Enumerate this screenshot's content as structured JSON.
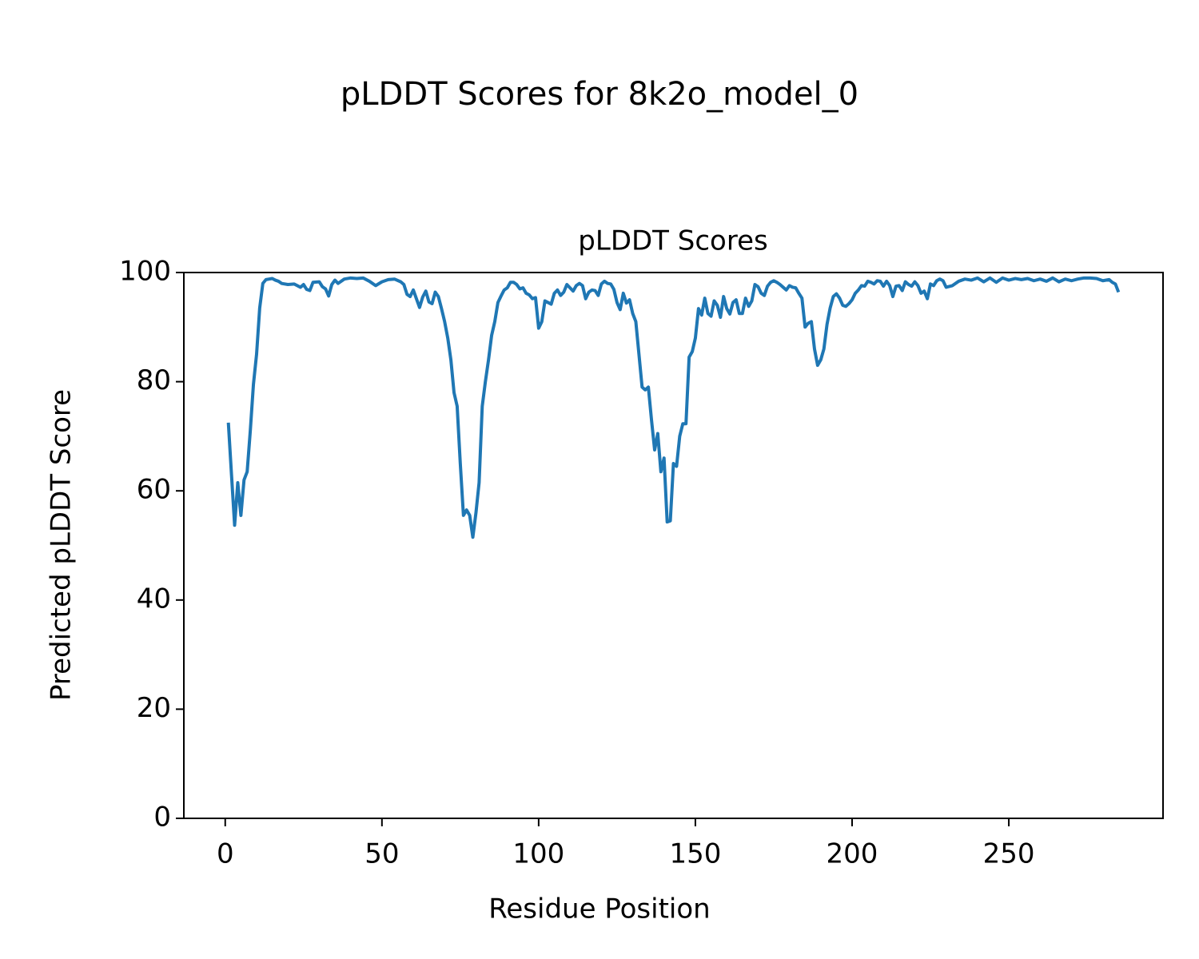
{
  "chart_data": {
    "type": "line",
    "title": "pLDDT Scores for 8k2o_model_0",
    "subtitle": "pLDDT Scores",
    "x_label": "Residue Position",
    "y_label": "Predicted pLDDT Score",
    "xlim": [
      -13.2,
      299.2
    ],
    "xticks": [
      0,
      50,
      100,
      150,
      200,
      250
    ],
    "ylim": [
      0,
      100
    ],
    "yticks": [
      0,
      20,
      40,
      60,
      80,
      100
    ],
    "x": [
      1,
      2,
      3,
      4,
      5,
      6,
      7,
      8,
      9,
      10,
      11,
      12,
      13,
      14,
      15,
      16,
      17,
      18,
      20,
      22,
      24,
      25,
      26,
      27,
      28,
      30,
      31,
      32,
      33,
      34,
      35,
      36,
      38,
      40,
      42,
      44,
      46,
      48,
      50,
      52,
      54,
      56,
      57,
      58,
      59,
      60,
      61,
      62,
      63,
      64,
      65,
      66,
      67,
      68,
      69,
      70,
      71,
      72,
      73,
      74,
      75,
      76,
      77,
      78,
      79,
      80,
      81,
      82,
      83,
      84,
      85,
      86,
      87,
      88,
      89,
      90,
      91,
      92,
      93,
      94,
      95,
      96,
      97,
      98,
      99,
      100,
      101,
      102,
      103,
      104,
      105,
      106,
      107,
      108,
      109,
      110,
      111,
      112,
      113,
      114,
      115,
      116,
      117,
      118,
      119,
      120,
      121,
      122,
      123,
      124,
      125,
      126,
      127,
      128,
      129,
      130,
      131,
      132,
      133,
      134,
      135,
      136,
      137,
      138,
      139,
      140,
      141,
      142,
      143,
      144,
      145,
      146,
      147,
      148,
      149,
      150,
      151,
      152,
      153,
      154,
      155,
      156,
      157,
      158,
      159,
      160,
      161,
      162,
      163,
      164,
      165,
      166,
      167,
      168,
      169,
      170,
      171,
      172,
      173,
      174,
      175,
      176,
      177,
      178,
      179,
      180,
      181,
      182,
      183,
      184,
      185,
      186,
      187,
      188,
      189,
      190,
      191,
      192,
      193,
      194,
      195,
      196,
      197,
      198,
      199,
      200,
      201,
      202,
      203,
      204,
      205,
      206,
      207,
      208,
      209,
      210,
      211,
      212,
      213,
      214,
      215,
      216,
      217,
      218,
      219,
      220,
      221,
      222,
      223,
      224,
      225,
      226,
      227,
      228,
      229,
      230,
      232,
      234,
      236,
      238,
      240,
      242,
      244,
      246,
      248,
      250,
      252,
      254,
      256,
      258,
      260,
      262,
      264,
      266,
      268,
      270,
      272,
      274,
      276,
      278,
      280,
      282,
      283,
      284,
      285
    ],
    "series": [
      {
        "color": "#1f77b4",
        "values": [
          72.5,
          63,
          53.7,
          61.5,
          55.5,
          62,
          63.5,
          71,
          79.5,
          85,
          93.5,
          98,
          98.7,
          98.8,
          98.9,
          98.6,
          98.4,
          98.0,
          97.8,
          97.9,
          97.3,
          97.8,
          96.9,
          96.7,
          98.2,
          98.3,
          97.4,
          97.0,
          95.7,
          97.8,
          98.6,
          98.0,
          98.8,
          99.0,
          98.9,
          99.0,
          98.4,
          97.6,
          98.3,
          98.7,
          98.8,
          98.3,
          97.8,
          96.0,
          95.6,
          96.8,
          95.2,
          93.6,
          95.5,
          96.6,
          94.6,
          94.3,
          96.4,
          95.6,
          93.4,
          91,
          88,
          84,
          78,
          75.5,
          65,
          55.5,
          56.5,
          55.5,
          51.5,
          56,
          61.5,
          75.5,
          80,
          84,
          88.5,
          91,
          94.5,
          95.7,
          96.8,
          97.2,
          98.2,
          98.2,
          97.8,
          97.0,
          97.2,
          96.2,
          95.9,
          95.2,
          95.4,
          89.8,
          91,
          94.8,
          94.5,
          94.2,
          96.2,
          96.8,
          95.8,
          96.4,
          97.8,
          97.2,
          96.6,
          97.6,
          98.0,
          97.6,
          95.2,
          96.4,
          96.8,
          96.7,
          95.8,
          97.9,
          98.4,
          98.0,
          97.9,
          96.9,
          94.5,
          93.2,
          96.2,
          94.4,
          95.0,
          92.5,
          91,
          85,
          79,
          78.5,
          79,
          73,
          67.5,
          70.5,
          63.5,
          66,
          54.3,
          54.5,
          65,
          64.5,
          70,
          72.3,
          72.3,
          84.5,
          85.5,
          88,
          93.4,
          92.2,
          95.3,
          92.5,
          92,
          94.8,
          94,
          91.8,
          95.6,
          93.4,
          92.4,
          94.5,
          95,
          92.5,
          92.5,
          95.3,
          93.8,
          94.8,
          97.8,
          97.4,
          96.2,
          95.8,
          97.5,
          98.2,
          98.5,
          98.2,
          97.8,
          97.3,
          96.8,
          97.6,
          97.3,
          97.2,
          96.2,
          95.3,
          90,
          90.7,
          91,
          86,
          83,
          84,
          86,
          90.5,
          93.5,
          95.6,
          96.1,
          95.3,
          94,
          93.8,
          94.3,
          95,
          96.2,
          96.8,
          97.6,
          97.5,
          98.4,
          98.2,
          97.9,
          98.5,
          98.4,
          97.5,
          98.4,
          97.6,
          95.6,
          97.5,
          97.6,
          96.7,
          98.3,
          97.8,
          97.5,
          98.3,
          97.6,
          96.2,
          96.6,
          95.2,
          97.9,
          97.6,
          98.5,
          98.8,
          98.5,
          97.3,
          97.6,
          98.4,
          98.8,
          98.6,
          99.0,
          98.3,
          99.0,
          98.2,
          99.0,
          98.6,
          98.9,
          98.7,
          98.9,
          98.5,
          98.8,
          98.4,
          99.0,
          98.3,
          98.8,
          98.5,
          98.8,
          99.0,
          99.0,
          98.9,
          98.5,
          98.7,
          98.2,
          97.9,
          96.4
        ]
      }
    ]
  }
}
